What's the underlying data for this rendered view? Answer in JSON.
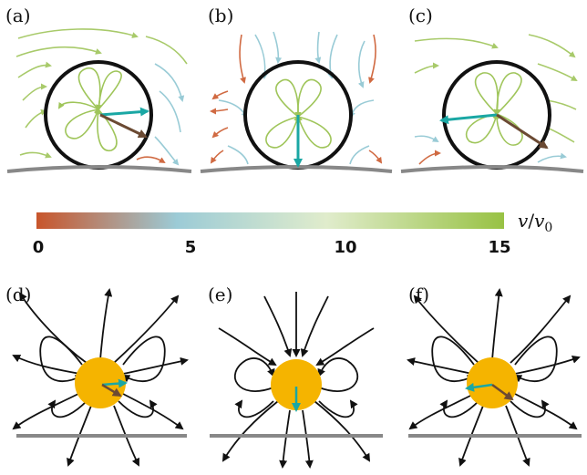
{
  "panels": {
    "a": {
      "label": "(a)"
    },
    "b": {
      "label": "(b)"
    },
    "c": {
      "label": "(c)"
    },
    "d": {
      "label": "(d)"
    },
    "e": {
      "label": "(e)"
    },
    "f": {
      "label": "(f)"
    }
  },
  "colorbar": {
    "label_v": "v",
    "label_sep": "/",
    "label_v0": "v",
    "label_sub": "0",
    "ticks": [
      "0",
      "5",
      "10",
      "15"
    ],
    "colors": [
      "#c8552b",
      "#9ccbd6",
      "#e0eccc",
      "#98c244"
    ]
  },
  "colors": {
    "wall": "#888888",
    "circle": "#111111",
    "particle": "#f5b400",
    "swim_arrow": "#1aa7a4",
    "brown_arrow": "#6b4a33",
    "streamline_green": "#9fc55a",
    "streamline_blue": "#8ec6d2",
    "streamline_orange": "#cc5a2e"
  }
}
